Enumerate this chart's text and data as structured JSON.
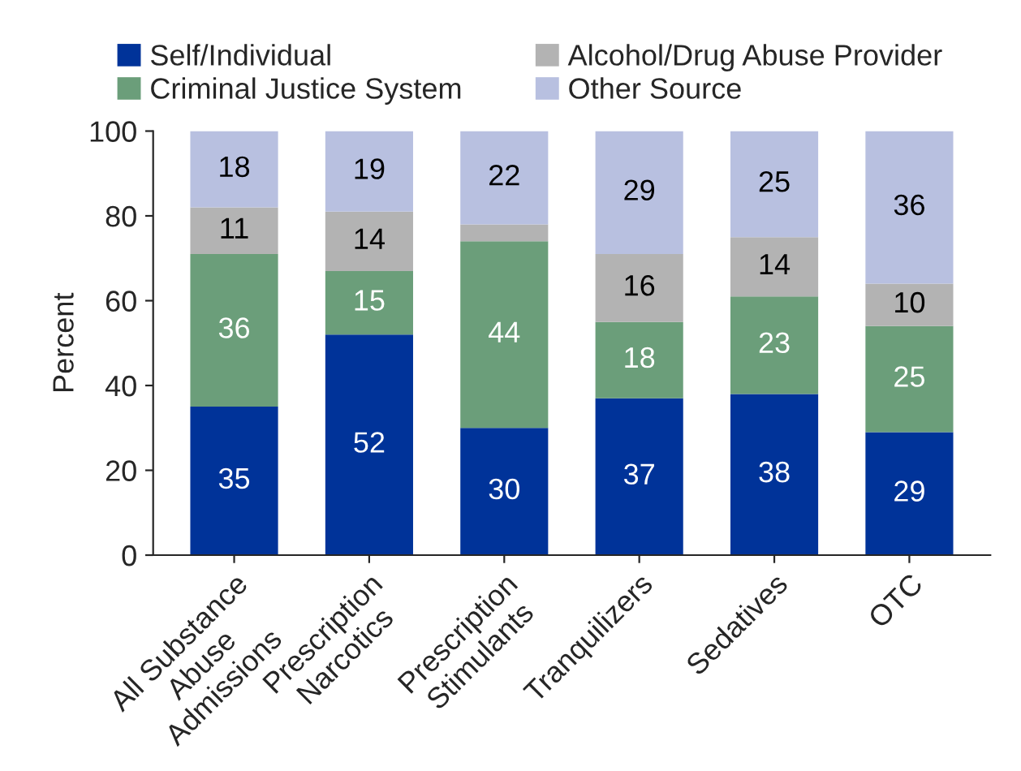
{
  "chart_data": {
    "type": "bar",
    "stacked": true,
    "ylabel": "Percent",
    "categories": [
      "All Substance\nAbuse\nAdmissions",
      "Prescription\nNarcotics",
      "Prescription\nStimulants",
      "Tranquilizers",
      "Sedatives",
      "OTC"
    ],
    "series": [
      {
        "name": "Self/Individual",
        "color": "#003399",
        "values": [
          35,
          52,
          30,
          37,
          38,
          29
        ],
        "value_labels": [
          "35",
          "52",
          "30",
          "37",
          "38",
          "29"
        ]
      },
      {
        "name": "Criminal Justice System",
        "color": "#6b9e7a",
        "values": [
          36,
          15,
          44,
          18,
          23,
          25
        ],
        "value_labels": [
          "36",
          "15",
          "44",
          "18",
          "23",
          "25"
        ]
      },
      {
        "name": "Alcohol/Drug Abuse Provider",
        "color": "#b3b3b3",
        "values": [
          11,
          14,
          4,
          16,
          14,
          10
        ],
        "value_labels": [
          "11",
          "14",
          null,
          "16",
          "14",
          "10"
        ]
      },
      {
        "name": "Other Source",
        "color": "#b8c0e0",
        "values": [
          18,
          19,
          22,
          29,
          25,
          36
        ],
        "value_labels": [
          "18",
          "19",
          "22",
          "29",
          "25",
          "36"
        ]
      }
    ],
    "ylim": [
      0,
      100
    ],
    "yticks": [
      0,
      20,
      40,
      60,
      80,
      100
    ],
    "grid": false,
    "legend": "top"
  }
}
